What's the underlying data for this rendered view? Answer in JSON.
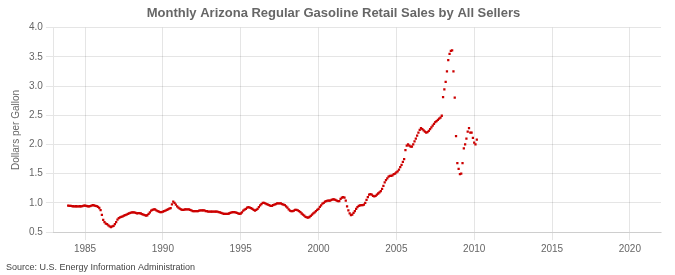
{
  "chart_data": {
    "type": "scatter",
    "title": "Monthly Arizona Regular Gasoline Retail Sales by All Sellers",
    "ylabel": "Dollars per Gallon",
    "annotations": [
      "Source: U.S. Energy Information Administration"
    ],
    "color": "#cc0000",
    "marker": "square",
    "grid": true,
    "xlim": [
      1983,
      2022
    ],
    "ylim": [
      0.5,
      4.0
    ],
    "xticks": [
      1985,
      1990,
      1995,
      2000,
      2005,
      2010,
      2015,
      2020
    ],
    "yticks": [
      0.5,
      {
        "value": 1.0,
        "label": "1.0"
      },
      1.5,
      {
        "value": 2.0,
        "label": "2.0"
      },
      2.5,
      {
        "value": 3.0,
        "label": "3.0"
      },
      3.5,
      {
        "value": 4.0,
        "label": "4.0"
      }
    ],
    "x": [
      1983.917,
      1984.0,
      1984.083,
      1984.167,
      1984.25,
      1984.333,
      1984.417,
      1984.5,
      1984.583,
      1984.667,
      1984.75,
      1984.833,
      1984.917,
      1985.0,
      1985.083,
      1985.167,
      1985.25,
      1985.333,
      1985.417,
      1985.5,
      1985.583,
      1985.667,
      1985.75,
      1985.833,
      1985.917,
      1986.0,
      1986.083,
      1986.167,
      1986.25,
      1986.333,
      1986.417,
      1986.5,
      1986.583,
      1986.667,
      1986.75,
      1986.833,
      1986.917,
      1987.0,
      1987.083,
      1987.167,
      1987.25,
      1987.333,
      1987.417,
      1987.5,
      1987.583,
      1987.667,
      1987.75,
      1987.833,
      1987.917,
      1988.0,
      1988.083,
      1988.167,
      1988.25,
      1988.333,
      1988.417,
      1988.5,
      1988.583,
      1988.667,
      1988.75,
      1988.833,
      1988.917,
      1989.0,
      1989.083,
      1989.167,
      1989.25,
      1989.333,
      1989.417,
      1989.5,
      1989.583,
      1989.667,
      1989.75,
      1989.833,
      1989.917,
      1990.0,
      1990.083,
      1990.167,
      1990.25,
      1990.333,
      1990.417,
      1990.5,
      1990.583,
      1990.667,
      1990.75,
      1990.833,
      1990.917,
      1991.0,
      1991.083,
      1991.167,
      1991.25,
      1991.333,
      1991.417,
      1991.5,
      1991.583,
      1991.667,
      1991.75,
      1991.833,
      1991.917,
      1992.0,
      1992.083,
      1992.167,
      1992.25,
      1992.333,
      1992.417,
      1992.5,
      1992.583,
      1992.667,
      1992.75,
      1992.833,
      1992.917,
      1993.0,
      1993.083,
      1993.167,
      1993.25,
      1993.333,
      1993.417,
      1993.5,
      1993.583,
      1993.667,
      1993.75,
      1993.833,
      1993.917,
      1994.0,
      1994.083,
      1994.167,
      1994.25,
      1994.333,
      1994.417,
      1994.5,
      1994.583,
      1994.667,
      1994.75,
      1994.833,
      1994.917,
      1995.0,
      1995.083,
      1995.167,
      1995.25,
      1995.333,
      1995.417,
      1995.5,
      1995.583,
      1995.667,
      1995.75,
      1995.833,
      1995.917,
      1996.0,
      1996.083,
      1996.167,
      1996.25,
      1996.333,
      1996.417,
      1996.5,
      1996.583,
      1996.667,
      1996.75,
      1996.833,
      1996.917,
      1997.0,
      1997.083,
      1997.167,
      1997.25,
      1997.333,
      1997.417,
      1997.5,
      1997.583,
      1997.667,
      1997.75,
      1997.833,
      1997.917,
      1998.0,
      1998.083,
      1998.167,
      1998.25,
      1998.333,
      1998.417,
      1998.5,
      1998.583,
      1998.667,
      1998.75,
      1998.833,
      1998.917,
      1999.0,
      1999.083,
      1999.167,
      1999.25,
      1999.333,
      1999.417,
      1999.5,
      1999.583,
      1999.667,
      1999.75,
      1999.833,
      1999.917,
      2000.0,
      2000.083,
      2000.167,
      2000.25,
      2000.333,
      2000.417,
      2000.5,
      2000.583,
      2000.667,
      2000.75,
      2000.833,
      2000.917,
      2001.0,
      2001.083,
      2001.167,
      2001.25,
      2001.333,
      2001.417,
      2001.5,
      2001.583,
      2001.667,
      2001.75,
      2001.833,
      2001.917,
      2002.0,
      2002.083,
      2002.167,
      2002.25,
      2002.333,
      2002.417,
      2002.5,
      2002.583,
      2002.667,
      2002.75,
      2002.833,
      2002.917,
      2003.0,
      2003.083,
      2003.167,
      2003.25,
      2003.333,
      2003.417,
      2003.5,
      2003.583,
      2003.667,
      2003.75,
      2003.833,
      2003.917,
      2004.0,
      2004.083,
      2004.167,
      2004.25,
      2004.333,
      2004.417,
      2004.5,
      2004.583,
      2004.667,
      2004.75,
      2004.833,
      2004.917,
      2005.0,
      2005.083,
      2005.167,
      2005.25,
      2005.333,
      2005.417,
      2005.5,
      2005.583,
      2005.667,
      2005.75,
      2005.833,
      2005.917,
      2006.0,
      2006.083,
      2006.167,
      2006.25,
      2006.333,
      2006.417,
      2006.5,
      2006.583,
      2006.667,
      2006.75,
      2006.833,
      2006.917,
      2007.0,
      2007.083,
      2007.167,
      2007.25,
      2007.333,
      2007.417,
      2007.5,
      2007.583,
      2007.667,
      2007.75,
      2007.833,
      2007.917,
      2008.0,
      2008.083,
      2008.167,
      2008.25,
      2008.333,
      2008.417,
      2008.5,
      2008.583,
      2008.667,
      2008.75,
      2008.833,
      2008.917,
      2009.0,
      2009.083,
      2009.167,
      2009.25,
      2009.333,
      2009.417,
      2009.5,
      2009.583,
      2009.667,
      2009.75,
      2009.833,
      2009.917,
      2010.0,
      2010.083,
      2010.167
    ],
    "values": [
      0.956,
      0.952,
      0.95,
      0.948,
      0.944,
      0.94,
      0.944,
      0.943,
      0.942,
      0.944,
      0.942,
      0.948,
      0.954,
      0.956,
      0.952,
      0.944,
      0.942,
      0.948,
      0.956,
      0.962,
      0.958,
      0.952,
      0.945,
      0.932,
      0.914,
      0.878,
      0.795,
      0.712,
      0.672,
      0.648,
      0.638,
      0.618,
      0.598,
      0.588,
      0.598,
      0.608,
      0.638,
      0.672,
      0.715,
      0.742,
      0.752,
      0.762,
      0.772,
      0.782,
      0.792,
      0.802,
      0.812,
      0.822,
      0.832,
      0.84,
      0.84,
      0.838,
      0.832,
      0.822,
      0.828,
      0.828,
      0.82,
      0.81,
      0.802,
      0.792,
      0.782,
      0.79,
      0.812,
      0.84,
      0.868,
      0.88,
      0.892,
      0.892,
      0.872,
      0.86,
      0.852,
      0.842,
      0.842,
      0.852,
      0.862,
      0.87,
      0.88,
      0.892,
      0.902,
      0.912,
      0.975,
      1.022,
      1.002,
      0.972,
      0.942,
      0.922,
      0.902,
      0.89,
      0.882,
      0.882,
      0.89,
      0.892,
      0.892,
      0.89,
      0.882,
      0.872,
      0.862,
      0.862,
      0.86,
      0.862,
      0.862,
      0.87,
      0.872,
      0.872,
      0.872,
      0.872,
      0.862,
      0.86,
      0.852,
      0.852,
      0.852,
      0.852,
      0.852,
      0.852,
      0.852,
      0.852,
      0.842,
      0.84,
      0.832,
      0.822,
      0.812,
      0.812,
      0.812,
      0.812,
      0.82,
      0.83,
      0.84,
      0.842,
      0.842,
      0.84,
      0.832,
      0.822,
      0.812,
      0.82,
      0.838,
      0.868,
      0.888,
      0.9,
      0.92,
      0.928,
      0.92,
      0.91,
      0.9,
      0.882,
      0.87,
      0.88,
      0.9,
      0.93,
      0.96,
      0.98,
      1.0,
      1.002,
      0.992,
      0.98,
      0.972,
      0.962,
      0.952,
      0.952,
      0.962,
      0.972,
      0.982,
      0.992,
      0.992,
      0.992,
      0.992,
      0.982,
      0.972,
      0.962,
      0.942,
      0.922,
      0.892,
      0.87,
      0.86,
      0.86,
      0.87,
      0.88,
      0.882,
      0.872,
      0.862,
      0.842,
      0.82,
      0.8,
      0.782,
      0.762,
      0.752,
      0.75,
      0.76,
      0.778,
      0.8,
      0.822,
      0.84,
      0.86,
      0.88,
      0.9,
      0.932,
      0.96,
      0.99,
      1.0,
      1.022,
      1.032,
      1.042,
      1.042,
      1.042,
      1.052,
      1.062,
      1.062,
      1.052,
      1.042,
      1.032,
      1.032,
      1.072,
      1.092,
      1.102,
      1.092,
      1.042,
      0.942,
      0.872,
      0.822,
      0.792,
      0.8,
      0.83,
      0.86,
      0.9,
      0.93,
      0.952,
      0.96,
      0.962,
      0.962,
      0.972,
      1.002,
      1.052,
      1.102,
      1.142,
      1.152,
      1.142,
      1.122,
      1.112,
      1.122,
      1.142,
      1.162,
      1.182,
      1.202,
      1.242,
      1.292,
      1.352,
      1.392,
      1.422,
      1.452,
      1.462,
      1.462,
      1.472,
      1.492,
      1.502,
      1.522,
      1.542,
      1.572,
      1.612,
      1.652,
      1.702,
      1.752,
      1.902,
      1.982,
      2.002,
      1.982,
      1.962,
      1.962,
      2.002,
      2.052,
      2.102,
      2.152,
      2.202,
      2.252,
      2.282,
      2.262,
      2.242,
      2.222,
      2.202,
      2.212,
      2.232,
      2.262,
      2.292,
      2.322,
      2.352,
      2.382,
      2.402,
      2.422,
      2.442,
      2.462,
      2.492,
      2.812,
      2.942,
      3.072,
      3.252,
      3.442,
      3.552,
      3.602,
      3.612,
      3.252,
      2.802,
      2.142,
      1.682,
      1.582,
      1.492,
      1.502,
      1.682,
      1.932,
      2.002,
      2.102,
      2.222,
      2.282,
      2.202,
      2.202,
      2.112,
      2.032,
      2.002,
      2.082
    ]
  }
}
